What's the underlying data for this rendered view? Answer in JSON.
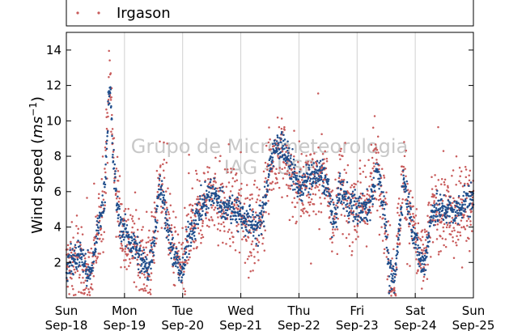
{
  "chart_data": {
    "type": "scatter",
    "title": "",
    "xlabel": "",
    "ylabel": "Wind speed (",
    "ylabel_unit": "ms",
    "ylabel_exp": "−1",
    "ylabel_close": ")",
    "ylim": [
      0,
      15
    ],
    "yticks": [
      2,
      4,
      6,
      8,
      10,
      12,
      14
    ],
    "xlim": [
      0,
      7
    ],
    "xticks": [
      {
        "x": 0,
        "day": "Sun",
        "date": "Sep-18"
      },
      {
        "x": 1,
        "day": "Mon",
        "date": "Sep-19"
      },
      {
        "x": 2,
        "day": "Tue",
        "date": "Sep-20"
      },
      {
        "x": 3,
        "day": "Wed",
        "date": "Sep-21"
      },
      {
        "x": 4,
        "day": "Thu",
        "date": "Sep-22"
      },
      {
        "x": 5,
        "day": "Fri",
        "date": "Sep-23"
      },
      {
        "x": 6,
        "day": "Sat",
        "date": "Sep-24"
      },
      {
        "x": 7,
        "day": "Sun",
        "date": "Sep-25"
      }
    ],
    "grid": "vertical",
    "legend_position": "top",
    "watermark": [
      "Grupo de Micrometeorologia",
      "IAG - USP"
    ],
    "series": [
      {
        "name": "Irgason",
        "color": "#c85a5a",
        "noise": 1.1,
        "profile": [
          [
            0.0,
            1.6
          ],
          [
            0.25,
            2.0
          ],
          [
            0.35,
            1.4
          ],
          [
            0.42,
            1.0
          ],
          [
            0.5,
            2.8
          ],
          [
            0.6,
            4.8
          ],
          [
            0.65,
            6.2
          ],
          [
            0.7,
            9.0
          ],
          [
            0.72,
            11.5
          ],
          [
            0.76,
            12.0
          ],
          [
            0.8,
            8.5
          ],
          [
            0.88,
            5.5
          ],
          [
            0.95,
            4.0
          ],
          [
            1.05,
            3.2
          ],
          [
            1.2,
            3.0
          ],
          [
            1.3,
            2.2
          ],
          [
            1.4,
            1.5
          ],
          [
            1.5,
            3.0
          ],
          [
            1.6,
            6.8
          ],
          [
            1.7,
            6.0
          ],
          [
            1.8,
            3.0
          ],
          [
            1.9,
            2.5
          ],
          [
            2.0,
            1.2
          ],
          [
            2.1,
            3.5
          ],
          [
            2.3,
            5.0
          ],
          [
            2.5,
            6.0
          ],
          [
            2.7,
            5.0
          ],
          [
            2.9,
            5.2
          ],
          [
            3.1,
            4.4
          ],
          [
            3.3,
            4.2
          ],
          [
            3.4,
            5.0
          ],
          [
            3.5,
            7.8
          ],
          [
            3.6,
            8.0
          ],
          [
            3.7,
            8.5
          ],
          [
            3.85,
            7.0
          ],
          [
            4.0,
            6.0
          ],
          [
            4.2,
            6.5
          ],
          [
            4.4,
            7.2
          ],
          [
            4.5,
            6.5
          ],
          [
            4.6,
            4.2
          ],
          [
            4.7,
            6.5
          ],
          [
            4.8,
            5.5
          ],
          [
            5.0,
            5.0
          ],
          [
            5.2,
            5.5
          ],
          [
            5.35,
            8.2
          ],
          [
            5.4,
            6.8
          ],
          [
            5.5,
            4.0
          ],
          [
            5.55,
            1.5
          ],
          [
            5.65,
            1.2
          ],
          [
            5.8,
            7.0
          ],
          [
            5.9,
            5.0
          ],
          [
            6.0,
            3.5
          ],
          [
            6.1,
            2.2
          ],
          [
            6.15,
            1.8
          ],
          [
            6.3,
            5.0
          ],
          [
            6.5,
            5.0
          ],
          [
            6.7,
            4.5
          ],
          [
            6.85,
            5.5
          ],
          [
            7.0,
            5.2
          ]
        ]
      },
      {
        "name": "",
        "color": "#1f4e8c",
        "noise": 0.45,
        "profile": [
          [
            0.0,
            1.8
          ],
          [
            0.25,
            2.5
          ],
          [
            0.35,
            1.5
          ],
          [
            0.42,
            1.2
          ],
          [
            0.5,
            3.0
          ],
          [
            0.6,
            5.0
          ],
          [
            0.65,
            5.5
          ],
          [
            0.7,
            9.0
          ],
          [
            0.72,
            11.0
          ],
          [
            0.76,
            11.5
          ],
          [
            0.8,
            8.0
          ],
          [
            0.88,
            5.0
          ],
          [
            0.95,
            4.0
          ],
          [
            1.05,
            3.5
          ],
          [
            1.2,
            2.8
          ],
          [
            1.3,
            2.0
          ],
          [
            1.4,
            1.6
          ],
          [
            1.5,
            3.0
          ],
          [
            1.6,
            6.5
          ],
          [
            1.7,
            5.0
          ],
          [
            1.8,
            2.8
          ],
          [
            1.9,
            2.0
          ],
          [
            2.0,
            1.3
          ],
          [
            2.1,
            3.5
          ],
          [
            2.3,
            5.0
          ],
          [
            2.5,
            6.0
          ],
          [
            2.7,
            5.2
          ],
          [
            2.9,
            5.0
          ],
          [
            3.1,
            4.4
          ],
          [
            3.3,
            4.0
          ],
          [
            3.4,
            5.0
          ],
          [
            3.5,
            7.6
          ],
          [
            3.6,
            8.4
          ],
          [
            3.7,
            8.8
          ],
          [
            3.85,
            7.5
          ],
          [
            4.0,
            6.2
          ],
          [
            4.2,
            6.8
          ],
          [
            4.4,
            7.0
          ],
          [
            4.5,
            6.2
          ],
          [
            4.6,
            4.0
          ],
          [
            4.7,
            6.2
          ],
          [
            4.8,
            5.6
          ],
          [
            5.0,
            5.0
          ],
          [
            5.2,
            5.0
          ],
          [
            5.35,
            7.4
          ],
          [
            5.4,
            6.5
          ],
          [
            5.5,
            4.0
          ],
          [
            5.55,
            1.2
          ],
          [
            5.65,
            1.0
          ],
          [
            5.8,
            6.8
          ],
          [
            5.9,
            5.0
          ],
          [
            6.0,
            3.2
          ],
          [
            6.1,
            2.0
          ],
          [
            6.15,
            1.8
          ],
          [
            6.3,
            5.0
          ],
          [
            6.5,
            5.0
          ],
          [
            6.7,
            4.8
          ],
          [
            6.85,
            5.5
          ],
          [
            7.0,
            5.5
          ]
        ]
      }
    ]
  }
}
